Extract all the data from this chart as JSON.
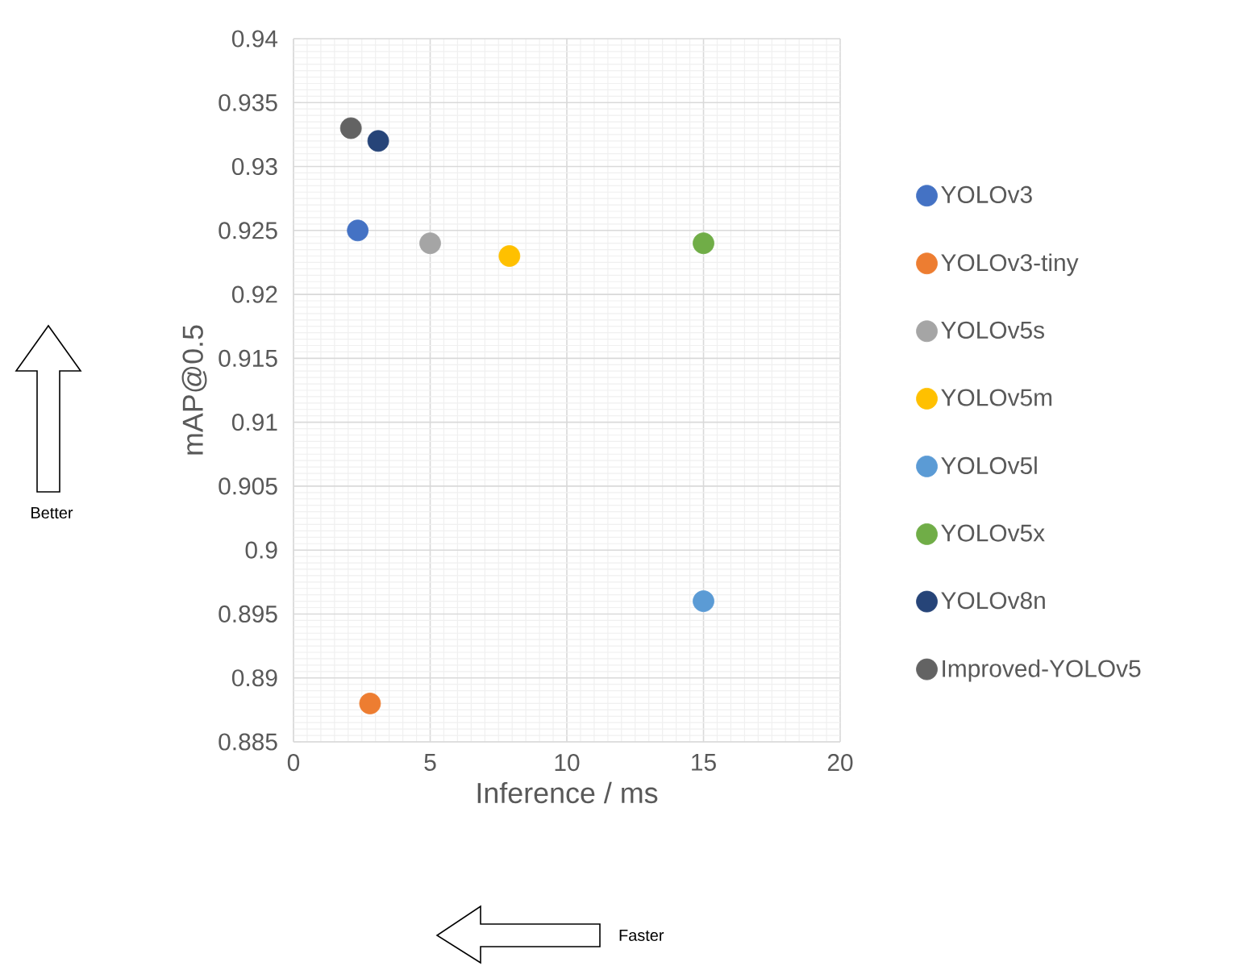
{
  "chart_data": {
    "type": "scatter",
    "xlabel": "Inference / ms",
    "ylabel": "mAP@0.5",
    "xlim": [
      0,
      20
    ],
    "xticks": [
      0,
      5,
      10,
      15,
      20
    ],
    "ylim": [
      0.885,
      0.94
    ],
    "yticks": [
      0.885,
      0.89,
      0.895,
      0.9,
      0.905,
      0.91,
      0.915,
      0.92,
      0.925,
      0.93,
      0.935,
      0.94
    ],
    "grid": true,
    "legend": "right",
    "marker": "circle",
    "annotations": [
      "Better",
      "Faster"
    ],
    "series": [
      {
        "name": "YOLOv3",
        "color": "#4472c4",
        "x": [
          2.35
        ],
        "values": [
          0.925
        ]
      },
      {
        "name": "YOLOv3-tiny",
        "color": "#ed7d31",
        "x": [
          2.8
        ],
        "values": [
          0.888
        ]
      },
      {
        "name": "YOLOv5s",
        "color": "#a5a5a5",
        "x": [
          5
        ],
        "values": [
          0.924
        ]
      },
      {
        "name": "YOLOv5m",
        "color": "#ffc000",
        "x": [
          7.9
        ],
        "values": [
          0.923
        ]
      },
      {
        "name": "YOLOv5l",
        "color": "#5b9bd5",
        "x": [
          15
        ],
        "values": [
          0.896
        ]
      },
      {
        "name": "YOLOv5x",
        "color": "#70ad47",
        "x": [
          15
        ],
        "values": [
          0.924
        ]
      },
      {
        "name": "YOLOv8n",
        "color": "#264478",
        "x": [
          3.1
        ],
        "values": [
          0.932
        ]
      },
      {
        "name": "Improved-YOLOv5",
        "color": "#636363",
        "x": [
          2.1
        ],
        "values": [
          0.933
        ]
      }
    ]
  }
}
